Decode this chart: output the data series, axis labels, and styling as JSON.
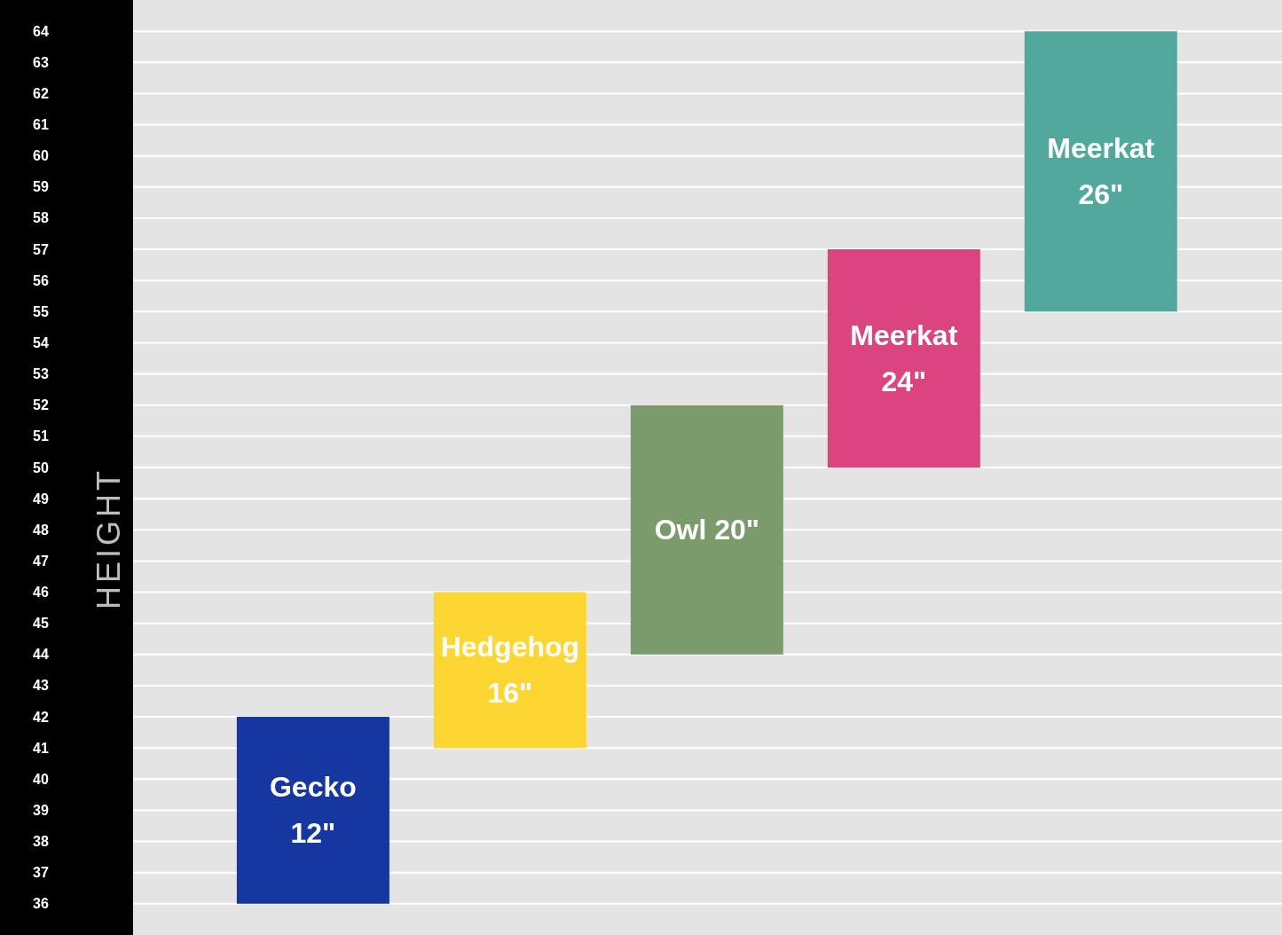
{
  "chart_data": {
    "type": "bar",
    "ylabel": "HEIGHT",
    "categories": [
      "Gecko 12\"",
      "Hedgehog 16\"",
      "Owl 20\"",
      "Meerkat 24\"",
      "Meerkat 26\""
    ],
    "base": [
      36,
      41,
      44,
      50,
      55
    ],
    "values": [
      6,
      5,
      8,
      7,
      9
    ],
    "colors": [
      "#1636a0",
      "#fed634",
      "#7b9b6d",
      "#dc4480",
      "#52a89c"
    ],
    "ylim": [
      35,
      65
    ],
    "yticks": [
      36,
      37,
      38,
      39,
      40,
      41,
      42,
      43,
      44,
      45,
      46,
      47,
      48,
      49,
      50,
      51,
      52,
      53,
      54,
      55,
      56,
      57,
      58,
      59,
      60,
      61,
      62,
      63,
      64
    ],
    "grid": "y",
    "tick_labels": "y"
  }
}
